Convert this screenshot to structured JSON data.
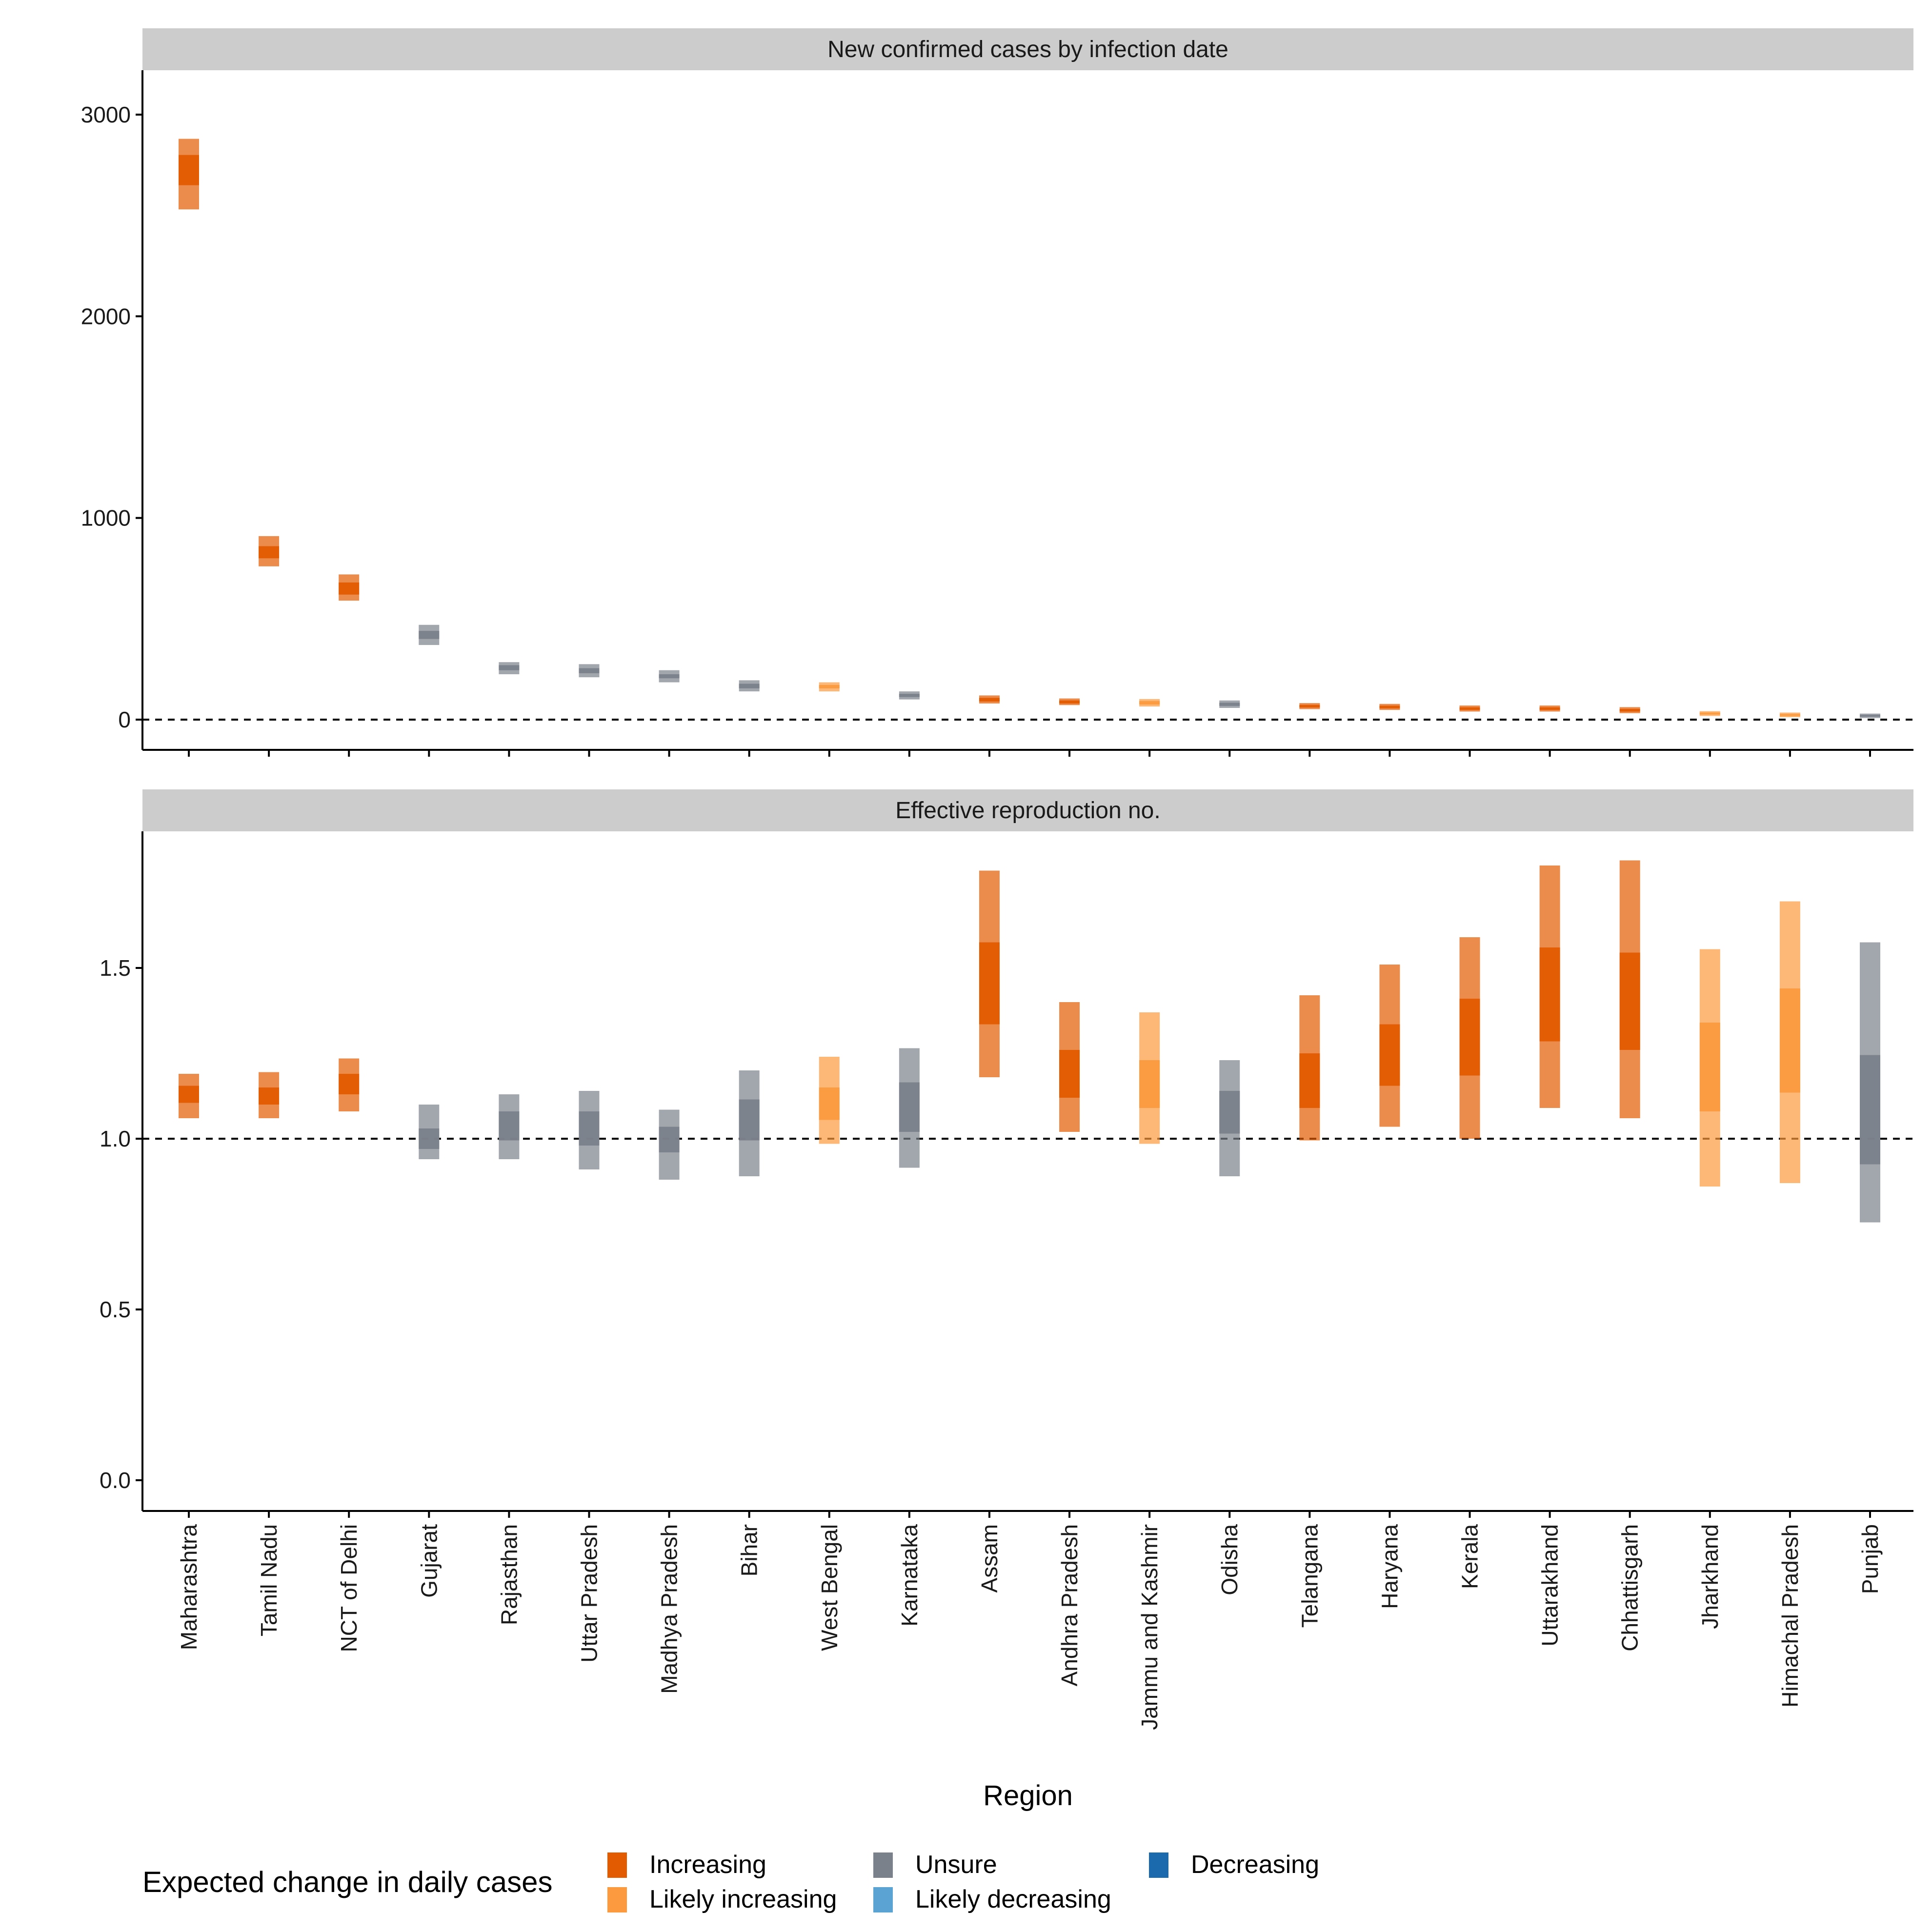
{
  "chart_data": {
    "type": "bar",
    "xlabel": "Region",
    "categories": [
      "Maharashtra",
      "Tamil Nadu",
      "NCT of Delhi",
      "Gujarat",
      "Rajasthan",
      "Uttar Pradesh",
      "Madhya Pradesh",
      "Bihar",
      "West Bengal",
      "Karnataka",
      "Assam",
      "Andhra Pradesh",
      "Jammu and Kashmir",
      "Odisha",
      "Telangana",
      "Haryana",
      "Kerala",
      "Uttarakhand",
      "Chhattisgarh",
      "Jharkhand",
      "Himachal Pradesh",
      "Punjab"
    ],
    "legend": {
      "title": "Expected change in daily cases",
      "placement": "bottom",
      "items": [
        {
          "label": "Increasing",
          "color": "#e35b00"
        },
        {
          "label": "Likely increasing",
          "color": "#fc9a3f"
        },
        {
          "label": "Unsure",
          "color": "#7b818a"
        },
        {
          "label": "Likely decreasing",
          "color": "#5ba3d3"
        },
        {
          "label": "Decreasing",
          "color": "#1a6aad"
        }
      ]
    },
    "panels": [
      {
        "title": "New confirmed cases by infection date",
        "ylim": [
          -150,
          3220
        ],
        "yticks": [
          0,
          1000,
          2000,
          3000
        ],
        "tick_labels": [
          "0",
          "1000",
          "2000",
          "3000"
        ],
        "reference_line": 0,
        "series": [
          {
            "region": "Maharashtra",
            "status": "Increasing",
            "lower_90": 2530,
            "upper_90": 2880,
            "lower_50": 2650,
            "upper_50": 2800
          },
          {
            "region": "Tamil Nadu",
            "status": "Increasing",
            "lower_90": 760,
            "upper_90": 910,
            "lower_50": 800,
            "upper_50": 860
          },
          {
            "region": "NCT of Delhi",
            "status": "Increasing",
            "lower_90": 590,
            "upper_90": 720,
            "lower_50": 620,
            "upper_50": 680
          },
          {
            "region": "Gujarat",
            "status": "Unsure",
            "lower_90": 370,
            "upper_90": 470,
            "lower_50": 400,
            "upper_50": 440
          },
          {
            "region": "Rajasthan",
            "status": "Unsure",
            "lower_90": 225,
            "upper_90": 285,
            "lower_50": 245,
            "upper_50": 270
          },
          {
            "region": "Uttar Pradesh",
            "status": "Unsure",
            "lower_90": 210,
            "upper_90": 275,
            "lower_50": 230,
            "upper_50": 255
          },
          {
            "region": "Madhya Pradesh",
            "status": "Unsure",
            "lower_90": 185,
            "upper_90": 245,
            "lower_50": 205,
            "upper_50": 225
          },
          {
            "region": "Bihar",
            "status": "Unsure",
            "lower_90": 140,
            "upper_90": 195,
            "lower_50": 155,
            "upper_50": 178
          },
          {
            "region": "West Bengal",
            "status": "Likely increasing",
            "lower_90": 140,
            "upper_90": 185,
            "lower_50": 155,
            "upper_50": 172
          },
          {
            "region": "Karnataka",
            "status": "Unsure",
            "lower_90": 100,
            "upper_90": 140,
            "lower_50": 112,
            "upper_50": 128
          },
          {
            "region": "Assam",
            "status": "Increasing",
            "lower_90": 80,
            "upper_90": 120,
            "lower_50": 90,
            "upper_50": 108
          },
          {
            "region": "Andhra Pradesh",
            "status": "Increasing",
            "lower_90": 72,
            "upper_90": 105,
            "lower_50": 80,
            "upper_50": 95
          },
          {
            "region": "Jammu and Kashmir",
            "status": "Likely increasing",
            "lower_90": 65,
            "upper_90": 102,
            "lower_50": 75,
            "upper_50": 92
          },
          {
            "region": "Odisha",
            "status": "Unsure",
            "lower_90": 58,
            "upper_90": 95,
            "lower_50": 68,
            "upper_50": 84
          },
          {
            "region": "Telangana",
            "status": "Increasing",
            "lower_90": 52,
            "upper_90": 82,
            "lower_50": 60,
            "upper_50": 73
          },
          {
            "region": "Haryana",
            "status": "Increasing",
            "lower_90": 48,
            "upper_90": 78,
            "lower_50": 56,
            "upper_50": 69
          },
          {
            "region": "Kerala",
            "status": "Increasing",
            "lower_90": 40,
            "upper_90": 70,
            "lower_50": 48,
            "upper_50": 61
          },
          {
            "region": "Uttarakhand",
            "status": "Increasing",
            "lower_90": 40,
            "upper_90": 70,
            "lower_50": 48,
            "upper_50": 61
          },
          {
            "region": "Chhattisgarh",
            "status": "Increasing",
            "lower_90": 32,
            "upper_90": 62,
            "lower_50": 40,
            "upper_50": 53
          },
          {
            "region": "Jharkhand",
            "status": "Likely increasing",
            "lower_90": 18,
            "upper_90": 42,
            "lower_50": 25,
            "upper_50": 35
          },
          {
            "region": "Himachal Pradesh",
            "status": "Likely increasing",
            "lower_90": 12,
            "upper_90": 35,
            "lower_50": 18,
            "upper_50": 28
          },
          {
            "region": "Punjab",
            "status": "Unsure",
            "lower_90": 8,
            "upper_90": 30,
            "lower_50": 14,
            "upper_50": 24
          }
        ]
      },
      {
        "title": "Effective reproduction no.",
        "ylim": [
          -0.09,
          1.9
        ],
        "yticks": [
          0.0,
          0.5,
          1.0,
          1.5
        ],
        "tick_labels": [
          "0.0",
          "0.5",
          "1.0",
          "1.5"
        ],
        "reference_line": 1.0,
        "series": [
          {
            "region": "Maharashtra",
            "status": "Increasing",
            "lower_90": 1.06,
            "upper_90": 1.19,
            "lower_50": 1.105,
            "upper_50": 1.155
          },
          {
            "region": "Tamil Nadu",
            "status": "Increasing",
            "lower_90": 1.06,
            "upper_90": 1.195,
            "lower_50": 1.1,
            "upper_50": 1.15
          },
          {
            "region": "NCT of Delhi",
            "status": "Increasing",
            "lower_90": 1.08,
            "upper_90": 1.235,
            "lower_50": 1.13,
            "upper_50": 1.19
          },
          {
            "region": "Gujarat",
            "status": "Unsure",
            "lower_90": 0.94,
            "upper_90": 1.1,
            "lower_50": 0.97,
            "upper_50": 1.03
          },
          {
            "region": "Rajasthan",
            "status": "Unsure",
            "lower_90": 0.94,
            "upper_90": 1.13,
            "lower_50": 0.995,
            "upper_50": 1.08
          },
          {
            "region": "Uttar Pradesh",
            "status": "Unsure",
            "lower_90": 0.91,
            "upper_90": 1.14,
            "lower_50": 0.98,
            "upper_50": 1.08
          },
          {
            "region": "Madhya Pradesh",
            "status": "Unsure",
            "lower_90": 0.88,
            "upper_90": 1.085,
            "lower_50": 0.96,
            "upper_50": 1.035
          },
          {
            "region": "Bihar",
            "status": "Unsure",
            "lower_90": 0.89,
            "upper_90": 1.2,
            "lower_50": 0.995,
            "upper_50": 1.115
          },
          {
            "region": "West Bengal",
            "status": "Likely increasing",
            "lower_90": 0.985,
            "upper_90": 1.24,
            "lower_50": 1.055,
            "upper_50": 1.15
          },
          {
            "region": "Karnataka",
            "status": "Unsure",
            "lower_90": 0.915,
            "upper_90": 1.265,
            "lower_50": 1.02,
            "upper_50": 1.165
          },
          {
            "region": "Assam",
            "status": "Increasing",
            "lower_90": 1.18,
            "upper_90": 1.785,
            "lower_50": 1.335,
            "upper_50": 1.575
          },
          {
            "region": "Andhra Pradesh",
            "status": "Increasing",
            "lower_90": 1.02,
            "upper_90": 1.4,
            "lower_50": 1.12,
            "upper_50": 1.26
          },
          {
            "region": "Jammu and Kashmir",
            "status": "Likely increasing",
            "lower_90": 0.985,
            "upper_90": 1.37,
            "lower_50": 1.09,
            "upper_50": 1.23
          },
          {
            "region": "Odisha",
            "status": "Unsure",
            "lower_90": 0.89,
            "upper_90": 1.23,
            "lower_50": 1.015,
            "upper_50": 1.14
          },
          {
            "region": "Telangana",
            "status": "Increasing",
            "lower_90": 0.995,
            "upper_90": 1.42,
            "lower_50": 1.09,
            "upper_50": 1.25
          },
          {
            "region": "Haryana",
            "status": "Increasing",
            "lower_90": 1.035,
            "upper_90": 1.51,
            "lower_50": 1.155,
            "upper_50": 1.335
          },
          {
            "region": "Kerala",
            "status": "Increasing",
            "lower_90": 1.0,
            "upper_90": 1.59,
            "lower_50": 1.185,
            "upper_50": 1.41
          },
          {
            "region": "Uttarakhand",
            "status": "Increasing",
            "lower_90": 1.09,
            "upper_90": 1.8,
            "lower_50": 1.285,
            "upper_50": 1.56
          },
          {
            "region": "Chhattisgarh",
            "status": "Increasing",
            "lower_90": 1.06,
            "upper_90": 1.815,
            "lower_50": 1.26,
            "upper_50": 1.545
          },
          {
            "region": "Jharkhand",
            "status": "Likely increasing",
            "lower_90": 0.86,
            "upper_90": 1.555,
            "lower_50": 1.08,
            "upper_50": 1.34
          },
          {
            "region": "Himachal Pradesh",
            "status": "Likely increasing",
            "lower_90": 0.87,
            "upper_90": 1.695,
            "lower_50": 1.135,
            "upper_50": 1.44
          },
          {
            "region": "Punjab",
            "status": "Unsure",
            "lower_90": 0.755,
            "upper_90": 1.575,
            "lower_50": 0.925,
            "upper_50": 1.245
          }
        ]
      }
    ]
  }
}
